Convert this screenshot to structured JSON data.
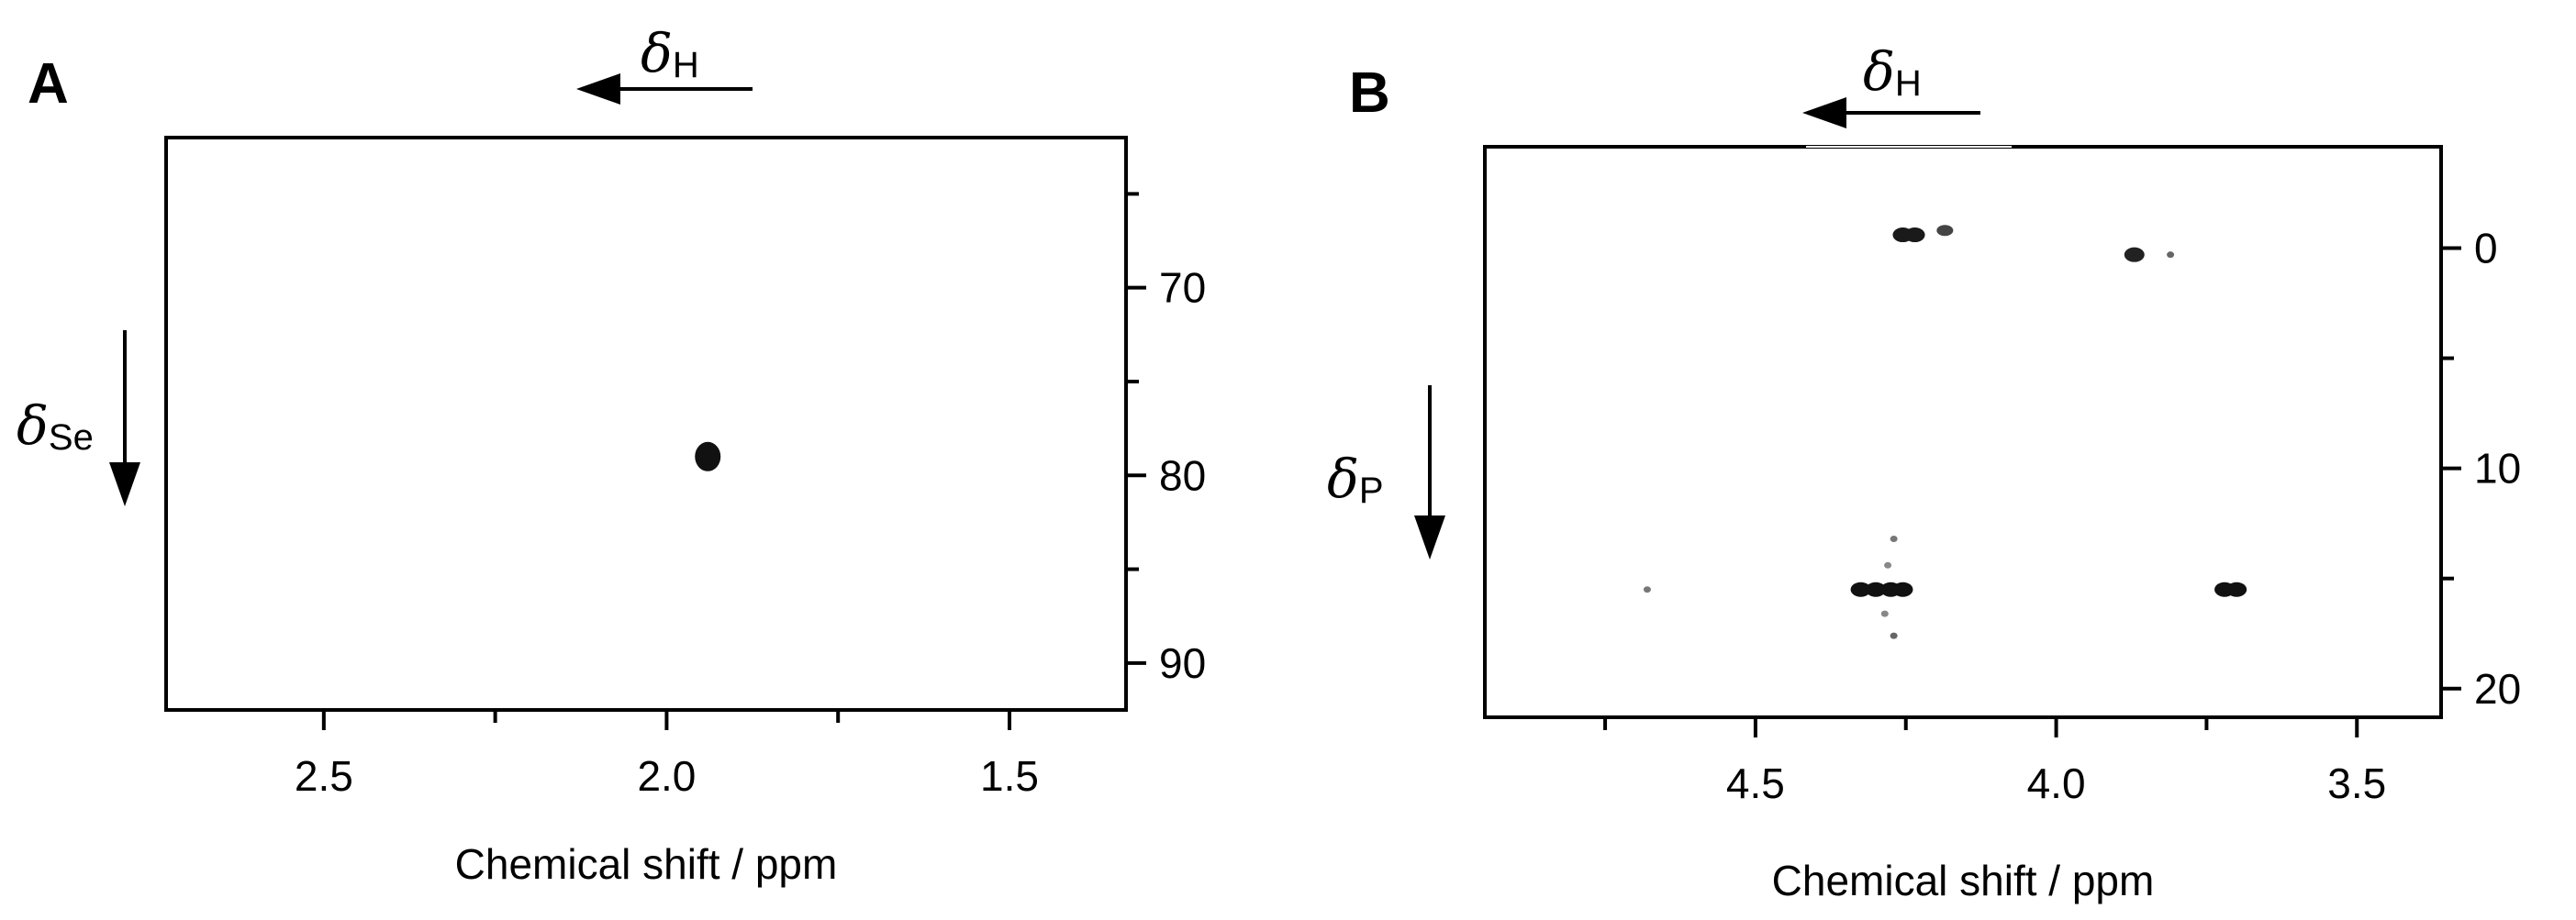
{
  "chart_data": [
    {
      "type": "scatter",
      "panel_label": "A",
      "title": "",
      "xlabel": "Chemical shift / ppm",
      "ylabel": "",
      "x_reversed": true,
      "y_reversed": true,
      "xlim": [
        2.73,
        1.33
      ],
      "ylim": [
        62,
        92.5
      ],
      "y_axis_side": "right",
      "grid": false,
      "xticks": {
        "labels": [
          "2.5",
          "2.0",
          "1.5"
        ],
        "values": [
          2.5,
          2.0,
          1.5
        ],
        "minor": [
          2.25,
          1.75
        ]
      },
      "yticks": {
        "labels": [
          "70",
          "80",
          "90"
        ],
        "values": [
          70,
          80,
          90
        ],
        "minor": [
          65,
          75,
          85
        ]
      },
      "x_direction_label": {
        "symbol": "δ",
        "subscript": "H"
      },
      "y_direction_label": {
        "symbol": "δ",
        "subscript": "Se"
      },
      "peaks": [
        {
          "x": 1.94,
          "y": 79.0,
          "intensity": "strong",
          "color": "#111111"
        }
      ]
    },
    {
      "type": "scatter",
      "panel_label": "B",
      "title": "",
      "xlabel": "Chemical shift / ppm",
      "ylabel": "",
      "x_reversed": true,
      "y_reversed": true,
      "xlim": [
        4.95,
        3.36
      ],
      "ylim": [
        -4.6,
        21.3
      ],
      "y_axis_side": "right",
      "grid": false,
      "xticks": {
        "labels": [
          "4.5",
          "4.0",
          "3.5"
        ],
        "values": [
          4.5,
          4.0,
          3.5
        ],
        "minor": [
          4.75,
          4.25,
          3.75
        ]
      },
      "yticks": {
        "labels": [
          "0",
          "10",
          "20"
        ],
        "values": [
          0,
          10,
          20
        ],
        "minor": [
          5,
          15
        ]
      },
      "x_direction_label": {
        "symbol": "δ",
        "subscript": "H"
      },
      "y_direction_label": {
        "symbol": "δ",
        "subscript": "P"
      },
      "peaks": [
        {
          "x": 4.255,
          "y": -0.6,
          "intensity": "strong",
          "color": "#1a1a1a"
        },
        {
          "x": 4.235,
          "y": -0.6,
          "intensity": "strong",
          "color": "#1a1a1a"
        },
        {
          "x": 4.185,
          "y": -0.8,
          "intensity": "medium",
          "color": "#444444"
        },
        {
          "x": 3.87,
          "y": 0.3,
          "intensity": "strong",
          "color": "#222222"
        },
        {
          "x": 3.81,
          "y": 0.3,
          "intensity": "weak",
          "color": "#666666"
        },
        {
          "x": 4.325,
          "y": 15.5,
          "intensity": "strong",
          "color": "#111111"
        },
        {
          "x": 4.3,
          "y": 15.5,
          "intensity": "strong",
          "color": "#111111"
        },
        {
          "x": 4.275,
          "y": 15.5,
          "intensity": "strong",
          "color": "#111111"
        },
        {
          "x": 4.255,
          "y": 15.5,
          "intensity": "strong",
          "color": "#111111"
        },
        {
          "x": 3.72,
          "y": 15.5,
          "intensity": "strong",
          "color": "#111111"
        },
        {
          "x": 3.7,
          "y": 15.5,
          "intensity": "strong",
          "color": "#111111"
        },
        {
          "x": 4.68,
          "y": 15.5,
          "intensity": "weak",
          "color": "#777777"
        },
        {
          "x": 4.27,
          "y": 13.2,
          "intensity": "weak",
          "color": "#777777"
        },
        {
          "x": 4.28,
          "y": 14.4,
          "intensity": "weak",
          "color": "#888888"
        },
        {
          "x": 4.285,
          "y": 16.6,
          "intensity": "weak",
          "color": "#888888"
        },
        {
          "x": 4.27,
          "y": 17.6,
          "intensity": "weak",
          "color": "#666666"
        }
      ]
    }
  ]
}
